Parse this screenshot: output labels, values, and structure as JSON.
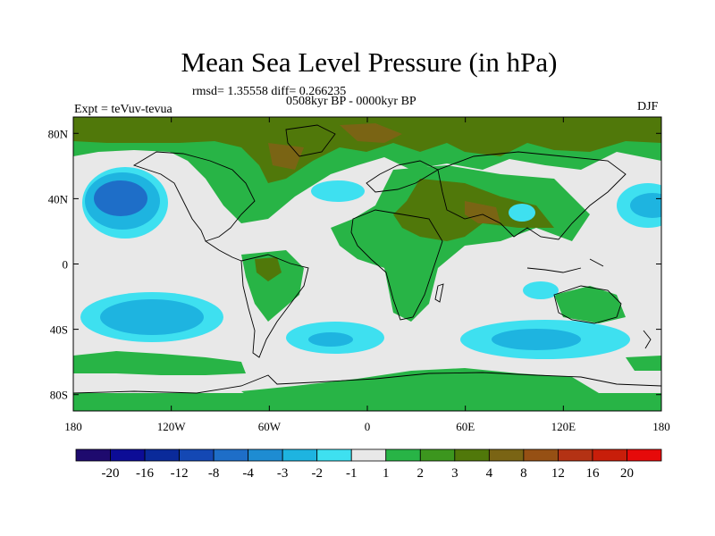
{
  "title": "Mean Sea Level Pressure (in hPa)",
  "stats_line": "rmsd= 1.35558 diff= 0.266235",
  "period_line": "0508kyr BP - 0000kyr BP",
  "experiment_label": "Expt = teVuv-tevua",
  "season_label": "DJF",
  "map": {
    "projection": "cylindrical-equidistant",
    "lon_range": [
      -180,
      180
    ],
    "lat_range": [
      -90,
      90
    ],
    "x_ticks": [
      {
        "value": -180,
        "label": "180"
      },
      {
        "value": -120,
        "label": "120W"
      },
      {
        "value": -60,
        "label": "60W"
      },
      {
        "value": 0,
        "label": "0"
      },
      {
        "value": 60,
        "label": "60E"
      },
      {
        "value": 120,
        "label": "120E"
      },
      {
        "value": 180,
        "label": "180"
      }
    ],
    "y_ticks": [
      {
        "value": 80,
        "label": "80N"
      },
      {
        "value": 40,
        "label": "40N"
      },
      {
        "value": 0,
        "label": "0"
      },
      {
        "value": -40,
        "label": "40S"
      },
      {
        "value": -80,
        "label": "80S"
      }
    ],
    "background_level": "-1 to 1"
  },
  "colorbar": {
    "labels": [
      "-20",
      "-16",
      "-12",
      "-8",
      "-4",
      "-3",
      "-2",
      "-1",
      "1",
      "2",
      "3",
      "4",
      "8",
      "12",
      "16",
      "20"
    ],
    "colors": [
      "#1e0a6e",
      "#0c0c96",
      "#0a2a9a",
      "#1448b4",
      "#1e6ec8",
      "#1e8cd2",
      "#1eb4e0",
      "#3ee0f0",
      "#e8e8e8",
      "#28b446",
      "#3c961e",
      "#50780a",
      "#7a6414",
      "#965014",
      "#b43214",
      "#c81e0a",
      "#e60a0a"
    ]
  },
  "colors": {
    "background": "#e8e8e8",
    "positive_low": "#28b446",
    "positive_mid": "#50780a",
    "positive_high": "#7a6414",
    "negative_low": "#3ee0f0",
    "negative_mid": "#1eb4e0",
    "negative_high": "#1e6ec8"
  }
}
